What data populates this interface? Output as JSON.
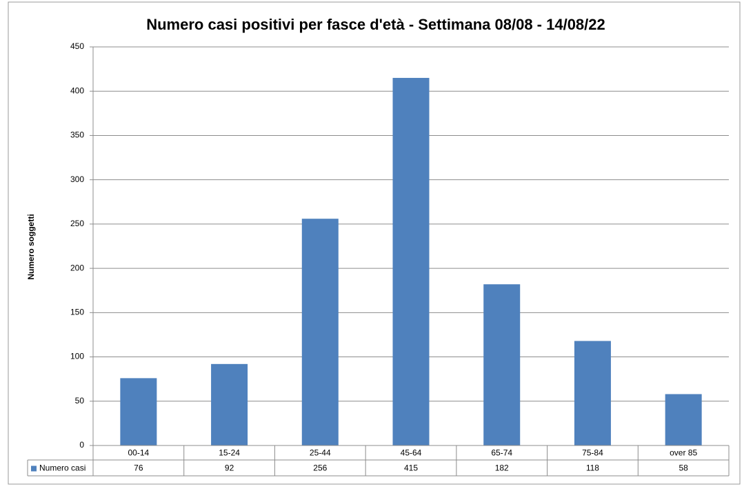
{
  "chart_data": {
    "type": "bar",
    "title": "Numero casi positivi per fasce d'età - Settimana 08/08 - 14/08/22",
    "y_label": "Numero soggetti",
    "categories": [
      "00-14",
      "15-24",
      "25-44",
      "45-64",
      "65-74",
      "75-84",
      "over 85"
    ],
    "series": [
      {
        "name": "Numero casi",
        "color": "#4f81bd",
        "values": [
          76,
          92,
          256,
          415,
          182,
          118,
          58
        ]
      }
    ],
    "ylim": [
      0,
      450
    ],
    "yticks": [
      0,
      50,
      100,
      150,
      200,
      250,
      300,
      350,
      400,
      450
    ],
    "grid": true
  }
}
